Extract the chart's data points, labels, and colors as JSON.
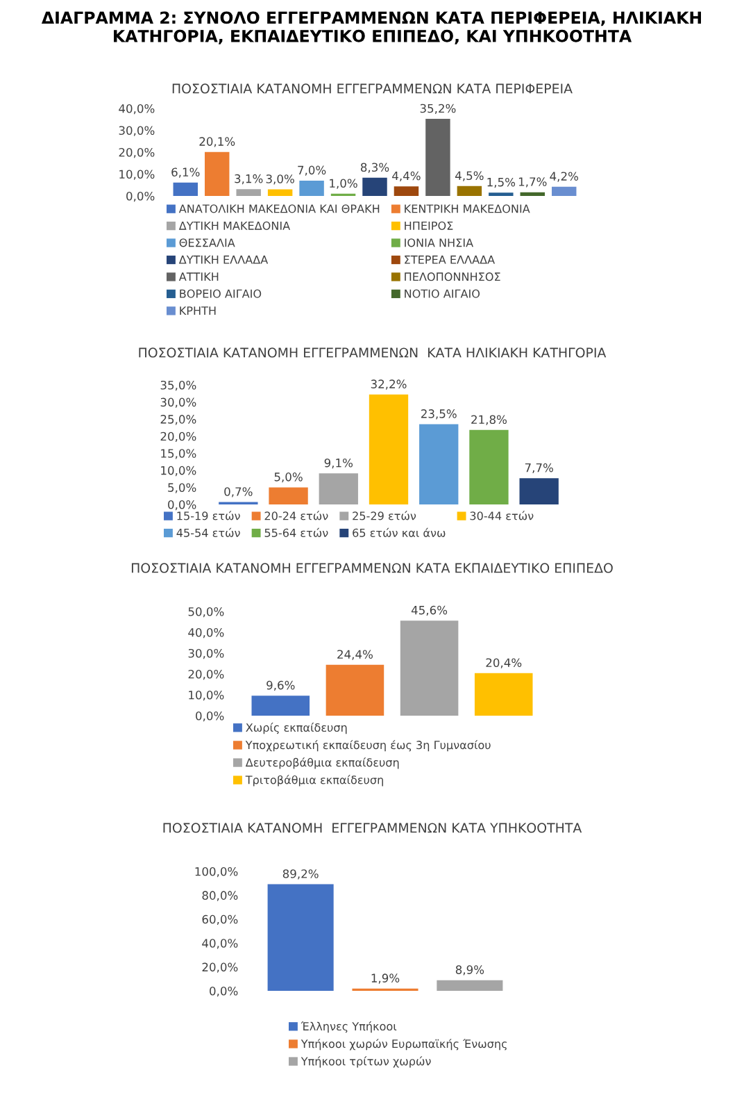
{
  "chart_data": [
    {
      "type": "bar",
      "title": "ΔΙΑΓΡΑΜΜΑ 2: ΣΥΝΟΛΟ ΕΓΓΕΓΡΑΜΜΕΝΩΝ ΚΑΤΑ ΠΕΡΙΦΕΡΕΙΑ, ΗΛΙΚΙΑΚΗ ΚΑΤΗΓΟΡΙΑ, ΕΚΠΑΙΔΕΥΤΙΚΟ ΕΠΙΠΕΔΟ, ΚΑΙ ΥΠΗΚΟΟΤΗΤΑ",
      "subtitle": "ΠΟΣΟΣΤΙΑΙΑ ΚΑΤΑΝΟΜΗ ΕΓΓΕΓΡΑΜΜΕΝΩΝ ΚΑΤΑ ΠΕΡΙΦΕΡΕΙΑ",
      "categories": [
        null
      ],
      "legend": "bottom",
      "ylim": [
        0,
        40
      ],
      "yticks": [
        {
          "value": 0,
          "label": "0,0%"
        },
        {
          "value": 10,
          "label": "10,0%"
        },
        {
          "value": 20,
          "label": "20,0%"
        },
        {
          "value": 30,
          "label": "30,0%"
        },
        {
          "value": 40,
          "label": "40,0%"
        }
      ],
      "series": [
        {
          "name": "ΑΝΑΤΟΛΙΚΗ ΜΑΚΕΔΟΝΙΑ ΚΑΙ ΘΡΑΚΗ",
          "color": "#4472c4",
          "values": [
            6.1
          ],
          "value_labels": [
            "6,1%"
          ]
        },
        {
          "name": "ΚΕΝΤΡΙΚΗ ΜΑΚΕΔΟΝΙΑ",
          "color": "#ed7d31",
          "values": [
            20.1
          ],
          "value_labels": [
            "20,1%"
          ]
        },
        {
          "name": "ΔΥΤΙΚΗ ΜΑΚΕΔΟΝΙΑ",
          "color": "#a5a5a5",
          "values": [
            3.1
          ],
          "value_labels": [
            "3,1%"
          ]
        },
        {
          "name": "ΗΠΕΙΡΟΣ",
          "color": "#ffc000",
          "values": [
            3.0
          ],
          "value_labels": [
            "3,0%"
          ]
        },
        {
          "name": "ΘΕΣΣΑΛΙΑ",
          "color": "#5b9bd5",
          "values": [
            7.0
          ],
          "value_labels": [
            "7,0%"
          ]
        },
        {
          "name": "ΙΟΝΙΑ ΝΗΣΙΑ",
          "color": "#70ad47",
          "values": [
            1.0
          ],
          "value_labels": [
            "1,0%"
          ]
        },
        {
          "name": "ΔΥΤΙΚΗ ΕΛΛΑΔΑ",
          "color": "#264478",
          "values": [
            8.3
          ],
          "value_labels": [
            "8,3%"
          ]
        },
        {
          "name": "ΣΤΕΡΕΑ ΕΛΛΑΔΑ",
          "color": "#9e480e",
          "values": [
            4.4
          ],
          "value_labels": [
            "4,4%"
          ]
        },
        {
          "name": "ΑΤΤΙΚΗ",
          "color": "#636363",
          "values": [
            35.2
          ],
          "value_labels": [
            "35,2%"
          ]
        },
        {
          "name": "ΠΕΛΟΠΟΝΝΗΣΟΣ",
          "color": "#997300",
          "values": [
            4.5
          ],
          "value_labels": [
            "4,5%"
          ]
        },
        {
          "name": "ΒΟΡΕΙΟ ΑΙΓΑΙΟ",
          "color": "#255e91",
          "values": [
            1.5
          ],
          "value_labels": [
            "1,5%"
          ]
        },
        {
          "name": "ΝΟΤΙΟ ΑΙΓΑΙΟ",
          "color": "#43682b",
          "values": [
            1.7
          ],
          "value_labels": [
            "1,7%"
          ]
        },
        {
          "name": "ΚΡΗΤΗ",
          "color": "#698ed0",
          "values": [
            4.2
          ],
          "value_labels": [
            "4,2%"
          ]
        }
      ]
    },
    {
      "type": "bar",
      "title": "ΠΟΣΟΣΤΙΑΙΑ ΚΑΤΑΝΟΜΗ ΕΓΓΕΓΡΑΜΜΕΝΩΝ  ΚΑΤΑ ΗΛΙΚΙΑΚΗ ΚΑΤΗΓΟΡΙΑ",
      "categories": [
        null
      ],
      "legend": "bottom",
      "ylim": [
        0,
        35
      ],
      "yticks": [
        {
          "value": 0,
          "label": "0,0%"
        },
        {
          "value": 5,
          "label": "5,0%"
        },
        {
          "value": 10,
          "label": "10,0%"
        },
        {
          "value": 15,
          "label": "15,0%"
        },
        {
          "value": 20,
          "label": "20,0%"
        },
        {
          "value": 25,
          "label": "25,0%"
        },
        {
          "value": 30,
          "label": "30,0%"
        },
        {
          "value": 35,
          "label": "35,0%"
        }
      ],
      "series": [
        {
          "name": "15-19 ετών",
          "color": "#4472c4",
          "values": [
            0.7
          ],
          "value_labels": [
            "0,7%"
          ]
        },
        {
          "name": "20-24 ετών",
          "color": "#ed7d31",
          "values": [
            5.0
          ],
          "value_labels": [
            "5,0%"
          ]
        },
        {
          "name": "25-29 ετών",
          "color": "#a5a5a5",
          "values": [
            9.1
          ],
          "value_labels": [
            "9,1%"
          ]
        },
        {
          "name": "30-44 ετών",
          "color": "#ffc000",
          "values": [
            32.2
          ],
          "value_labels": [
            "32,2%"
          ]
        },
        {
          "name": "45-54 ετών",
          "color": "#5b9bd5",
          "values": [
            23.5
          ],
          "value_labels": [
            "23,5%"
          ]
        },
        {
          "name": "55-64 ετών",
          "color": "#70ad47",
          "values": [
            21.8
          ],
          "value_labels": [
            "21,8%"
          ]
        },
        {
          "name": "65 ετών και άνω",
          "color": "#264478",
          "values": [
            7.7
          ],
          "value_labels": [
            "7,7%"
          ]
        }
      ]
    },
    {
      "type": "bar",
      "title": "ΠΟΣΟΣΤΙΑΙΑ ΚΑΤΑΝΟΜΗ ΕΓΓΕΓΡΑΜΜΕΝΩΝ ΚΑΤΑ ΕΚΠΑΙΔΕΥΤΙΚΟ ΕΠΙΠΕΔΟ",
      "categories": [
        null
      ],
      "legend": "bottom",
      "ylim": [
        0,
        50
      ],
      "yticks": [
        {
          "value": 0,
          "label": "0,0%"
        },
        {
          "value": 10,
          "label": "10,0%"
        },
        {
          "value": 20,
          "label": "20,0%"
        },
        {
          "value": 30,
          "label": "30,0%"
        },
        {
          "value": 40,
          "label": "40,0%"
        },
        {
          "value": 50,
          "label": "50,0%"
        }
      ],
      "series": [
        {
          "name": "Χωρίς εκπαίδευση",
          "color": "#4472c4",
          "values": [
            9.6
          ],
          "value_labels": [
            "9,6%"
          ]
        },
        {
          "name": "Υποχρεωτική εκπαίδευση έως 3η Γυμνασίου",
          "color": "#ed7d31",
          "values": [
            24.4
          ],
          "value_labels": [
            "24,4%"
          ]
        },
        {
          "name": "Δευτεροβάθμια εκπαίδευση",
          "color": "#a5a5a5",
          "values": [
            45.6
          ],
          "value_labels": [
            "45,6%"
          ]
        },
        {
          "name": "Τριτοβάθμια εκπαίδευση",
          "color": "#ffc000",
          "values": [
            20.4
          ],
          "value_labels": [
            "20,4%"
          ]
        }
      ]
    },
    {
      "type": "bar",
      "title": "ΠΟΣΟΣΤΙΑΙΑ ΚΑΤΑΝΟΜΗ  ΕΓΓΕΓΡΑΜΜΕΝΩΝ ΚΑΤΑ ΥΠΗΚΟΟΤΗΤΑ",
      "categories": [
        null
      ],
      "legend": "bottom",
      "ylim": [
        0,
        100
      ],
      "yticks": [
        {
          "value": 0,
          "label": "0,0%"
        },
        {
          "value": 20,
          "label": "20,0%"
        },
        {
          "value": 40,
          "label": "40,0%"
        },
        {
          "value": 60,
          "label": "60,0%"
        },
        {
          "value": 80,
          "label": "80,0%"
        },
        {
          "value": 100,
          "label": "100,0%"
        }
      ],
      "series": [
        {
          "name": "Έλληνες Υπήκοοι",
          "color": "#4472c4",
          "values": [
            89.2
          ],
          "value_labels": [
            "89,2%"
          ]
        },
        {
          "name": "Υπήκοοι χωρών Ευρωπαϊκής Ένωσης",
          "color": "#ed7d31",
          "values": [
            1.9
          ],
          "value_labels": [
            "1,9%"
          ]
        },
        {
          "name": "Υπήκοοι τρίτων χωρών",
          "color": "#a5a5a5",
          "values": [
            8.9
          ],
          "value_labels": [
            "8,9%"
          ]
        }
      ]
    }
  ]
}
